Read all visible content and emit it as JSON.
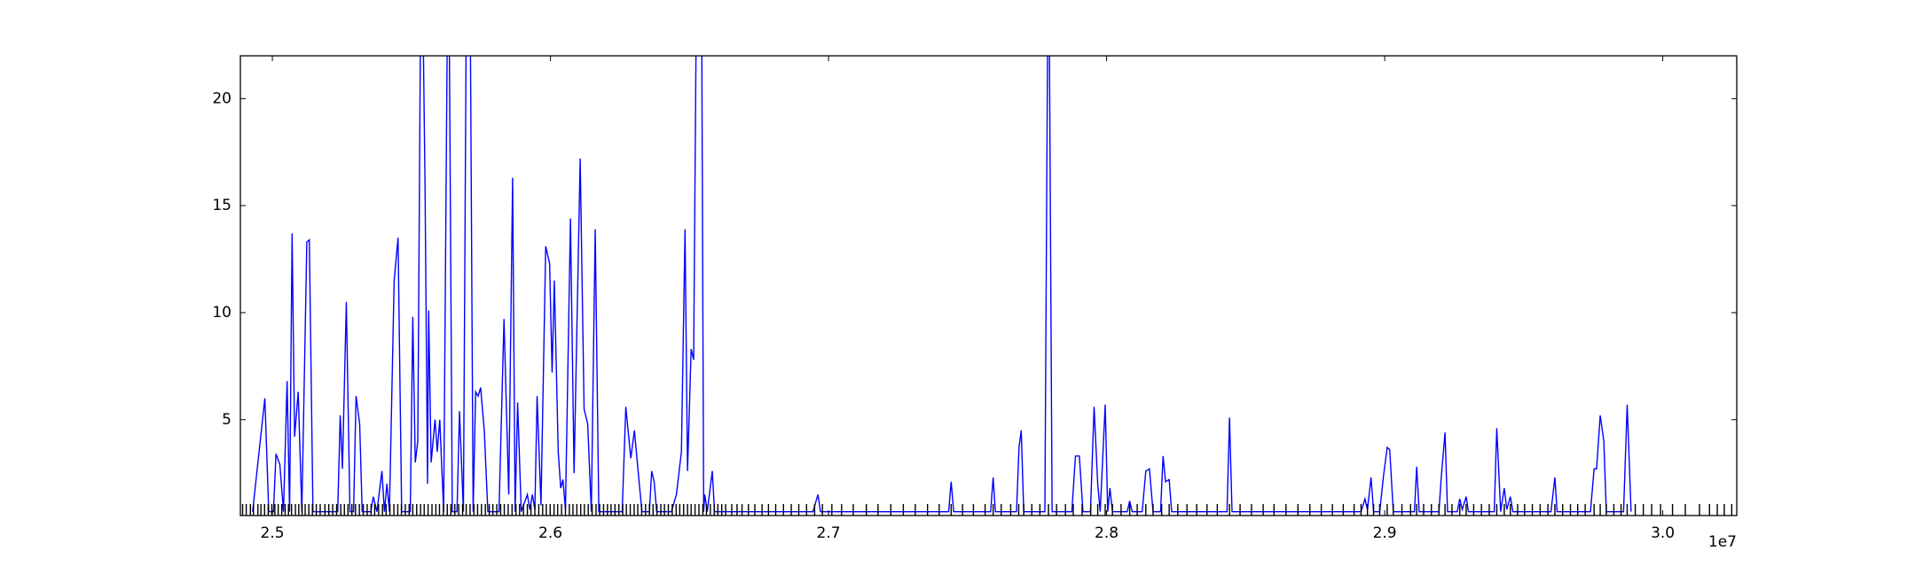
{
  "chart_data": {
    "type": "line",
    "x_offset_label": "1e7",
    "xlim": [
      2.4885,
      3.0266
    ],
    "ylim": [
      0.52,
      22
    ],
    "xticks": [
      2.5,
      2.6,
      2.7,
      2.8,
      2.9,
      {
        "value": 3,
        "label": "3.0"
      }
    ],
    "yticks": [
      5,
      10,
      15,
      20
    ],
    "x": [
      2.4929,
      2.4973,
      2.4987,
      2.5004,
      2.5013,
      2.5027,
      2.504,
      2.5053,
      2.5062,
      2.5071,
      2.508,
      2.5093,
      2.5106,
      2.5124,
      2.5133,
      2.5146,
      2.5235,
      2.5244,
      2.5252,
      2.5266,
      2.5279,
      2.5292,
      2.5301,
      2.5314,
      2.5323,
      2.5354,
      2.5363,
      2.5376,
      2.5394,
      2.5403,
      2.5412,
      2.5421,
      2.5438,
      2.5452,
      2.5465,
      2.5496,
      2.5505,
      2.5514,
      2.5523,
      2.5536,
      2.5549,
      2.5558,
      2.5562,
      2.5571,
      2.5585,
      2.5593,
      2.5602,
      2.5616,
      2.5633,
      2.5647,
      2.5664,
      2.5673,
      2.5687,
      2.57,
      2.5709,
      2.5722,
      2.5731,
      2.574,
      2.5749,
      2.5762,
      2.5775,
      2.5815,
      2.5833,
      2.585,
      2.5864,
      2.5873,
      2.5882,
      2.5895,
      2.5917,
      2.5926,
      2.5935,
      2.5944,
      2.5952,
      2.5966,
      2.5983,
      2.5997,
      2.6006,
      2.6014,
      2.6028,
      2.6037,
      2.6045,
      2.6054,
      2.6072,
      2.6085,
      2.6107,
      2.6121,
      2.6134,
      2.6147,
      2.6161,
      2.6174,
      2.6258,
      2.6271,
      2.6289,
      2.6302,
      2.6316,
      2.6329,
      2.6356,
      2.6364,
      2.6373,
      2.6382,
      2.6435,
      2.6453,
      2.6471,
      2.6484,
      2.6493,
      2.6506,
      2.6515,
      2.6528,
      2.6542,
      2.6551,
      2.6555,
      2.6564,
      2.6582,
      2.659,
      2.6944,
      2.6962,
      2.6971,
      2.7432,
      2.7441,
      2.745,
      2.7583,
      2.7592,
      2.76,
      2.7676,
      2.7685,
      2.7693,
      2.7702,
      2.7778,
      2.7791,
      2.7804,
      2.7875,
      2.7888,
      2.7902,
      2.7915,
      2.7942,
      2.7955,
      2.7968,
      2.7977,
      2.7995,
      2.8004,
      2.8012,
      2.8021,
      2.8074,
      2.8083,
      2.8092,
      2.8128,
      2.8141,
      2.8154,
      2.8167,
      2.8194,
      2.8203,
      2.8212,
      2.8225,
      2.8234,
      2.8433,
      2.8442,
      2.8451,
      2.8915,
      2.8929,
      2.8938,
      2.8951,
      2.896,
      2.8982,
      2.8996,
      2.9009,
      2.9018,
      2.9031,
      2.9107,
      2.9115,
      2.9124,
      2.9195,
      2.9204,
      2.9217,
      2.9226,
      2.9261,
      2.927,
      2.9279,
      2.9293,
      2.9301,
      2.9394,
      2.9403,
      2.9417,
      2.943,
      2.9439,
      2.9452,
      2.9461,
      2.9598,
      2.9612,
      2.962,
      2.974,
      2.9753,
      2.9762,
      2.9775,
      2.9788,
      2.9797,
      2.9859,
      2.9872,
      2.9886
    ],
    "series": [
      {
        "color": "#0000ff",
        "values": [
          0.7,
          6.0,
          0.7,
          0.7,
          3.4,
          2.9,
          0.7,
          6.8,
          0.7,
          13.7,
          4.2,
          6.3,
          0.7,
          13.3,
          13.4,
          0.7,
          0.7,
          5.2,
          2.7,
          10.5,
          0.7,
          0.7,
          6.1,
          4.8,
          0.7,
          0.7,
          1.4,
          0.7,
          2.6,
          0.7,
          2.0,
          0.7,
          11.5,
          13.5,
          0.7,
          0.7,
          9.8,
          3.0,
          4.0,
          30,
          16,
          2.0,
          10.1,
          3.0,
          5.0,
          3.5,
          5.0,
          0.7,
          30,
          0.7,
          0.7,
          5.4,
          0.7,
          30,
          30,
          0.7,
          6.3,
          6.1,
          6.5,
          4.5,
          0.7,
          0.7,
          9.7,
          1.5,
          16.3,
          0.7,
          5.8,
          0.7,
          1.5,
          0.8,
          1.5,
          0.8,
          6.1,
          1.0,
          13.1,
          12.3,
          7.2,
          11.5,
          3.5,
          1.8,
          2.2,
          0.8,
          14.4,
          2.5,
          17.2,
          5.5,
          4.8,
          0.7,
          13.9,
          0.7,
          0.7,
          5.6,
          3.2,
          4.5,
          2.5,
          0.7,
          0.7,
          2.6,
          2.1,
          0.7,
          0.7,
          1.5,
          3.5,
          13.9,
          2.6,
          8.3,
          7.8,
          30,
          30,
          0.7,
          1.5,
          0.7,
          2.6,
          0.7,
          0.7,
          1.5,
          0.7,
          0.7,
          2.1,
          0.7,
          0.7,
          2.3,
          0.7,
          0.7,
          3.7,
          4.5,
          0.7,
          0.7,
          30,
          0.7,
          0.7,
          3.3,
          3.3,
          0.7,
          0.7,
          5.6,
          2.0,
          0.7,
          5.7,
          0.7,
          1.8,
          0.7,
          0.7,
          1.2,
          0.7,
          0.7,
          2.6,
          2.7,
          0.7,
          0.7,
          3.3,
          2.1,
          2.2,
          0.7,
          0.7,
          5.1,
          0.7,
          0.7,
          1.3,
          0.8,
          2.3,
          0.7,
          0.7,
          2.4,
          3.7,
          3.6,
          0.7,
          0.7,
          2.8,
          0.7,
          0.7,
          2.4,
          4.4,
          0.7,
          0.7,
          1.3,
          0.8,
          1.4,
          0.7,
          0.7,
          4.6,
          0.7,
          1.8,
          0.8,
          1.4,
          0.7,
          0.7,
          2.3,
          0.7,
          0.7,
          2.7,
          2.7,
          5.2,
          4.0,
          0.7,
          0.7,
          5.7,
          0.7
        ]
      }
    ],
    "rug_color": "#000000",
    "rug_x": [
      2.4893,
      2.4906,
      2.4921,
      2.4932,
      2.4948,
      2.4959,
      2.4972,
      2.4985,
      2.4998,
      2.5009,
      2.5021,
      2.5034,
      2.5046,
      2.5058,
      2.5069,
      2.5083,
      2.5095,
      2.5107,
      2.5118,
      2.5131,
      2.5144,
      2.5158,
      2.5172,
      2.5189,
      2.5203,
      2.5217,
      2.5231,
      2.5246,
      2.5259,
      2.5272,
      2.5286,
      2.5299,
      2.5313,
      2.5327,
      2.5341,
      2.5355,
      2.5368,
      2.5382,
      2.5396,
      2.5409,
      2.5423,
      2.5437,
      2.5451,
      2.5464,
      2.5478,
      2.5492,
      2.5505,
      2.5519,
      2.5533,
      2.5546,
      2.556,
      2.5574,
      2.5588,
      2.5601,
      2.5615,
      2.5629,
      2.5642,
      2.5656,
      2.567,
      2.5684,
      2.5697,
      2.5711,
      2.5725,
      2.5738,
      2.5752,
      2.5766,
      2.578,
      2.5793,
      2.5807,
      2.5821,
      2.5834,
      2.5848,
      2.5862,
      2.5876,
      2.5889,
      2.5903,
      2.5917,
      2.593,
      2.5944,
      2.5958,
      2.5972,
      2.5985,
      2.5999,
      2.6013,
      2.6026,
      2.604,
      2.6054,
      2.6068,
      2.6081,
      2.6095,
      2.6109,
      2.6122,
      2.6136,
      2.615,
      2.6164,
      2.6177,
      2.6191,
      2.6205,
      2.6218,
      2.6232,
      2.6246,
      2.626,
      2.6273,
      2.6287,
      2.6301,
      2.6314,
      2.6328,
      2.6342,
      2.6356,
      2.6369,
      2.6383,
      2.6397,
      2.641,
      2.6424,
      2.6438,
      2.6452,
      2.6465,
      2.6479,
      2.6493,
      2.6506,
      2.652,
      2.6534,
      2.6548,
      2.6561,
      2.6575,
      2.6589,
      2.6602,
      2.6616,
      2.663,
      2.6652,
      2.6671,
      2.6689,
      2.6712,
      2.6735,
      2.6761,
      2.6784,
      2.681,
      2.6838,
      2.6866,
      2.6893,
      2.6921,
      2.695,
      2.6978,
      2.7012,
      2.7047,
      2.7089,
      2.7136,
      2.7178,
      2.7224,
      2.7269,
      2.7312,
      2.7356,
      2.7398,
      2.7441,
      2.7482,
      2.7521,
      2.7563,
      2.7592,
      2.7621,
      2.7655,
      2.7684,
      2.7702,
      2.7731,
      2.776,
      2.7791,
      2.782,
      2.7852,
      2.788,
      2.7912,
      2.7943,
      2.7968,
      2.7995,
      2.8021,
      2.8052,
      2.8083,
      2.811,
      2.8141,
      2.8167,
      2.8198,
      2.8225,
      2.8256,
      2.8289,
      2.8324,
      2.8361,
      2.8398,
      2.8442,
      2.848,
      2.8521,
      2.8563,
      2.8602,
      2.8645,
      2.8688,
      2.8731,
      2.8772,
      2.8812,
      2.8851,
      2.889,
      2.8915,
      2.8938,
      2.896,
      2.8982,
      2.9009,
      2.9031,
      2.9062,
      2.9093,
      2.9115,
      2.914,
      2.9168,
      2.9195,
      2.9217,
      2.9242,
      2.927,
      2.9293,
      2.932,
      2.9348,
      2.9376,
      2.9403,
      2.943,
      2.9452,
      2.9478,
      2.9503,
      2.9531,
      2.9559,
      2.9587,
      2.9612,
      2.964,
      2.9668,
      2.9694,
      2.9721,
      2.9753,
      2.9775,
      2.9797,
      2.9824,
      2.985,
      2.9872,
      2.9901,
      2.993,
      2.996,
      2.9992,
      3.0035,
      3.0081,
      3.0132,
      3.0168,
      3.0196,
      3.0221,
      3.0248
    ]
  }
}
